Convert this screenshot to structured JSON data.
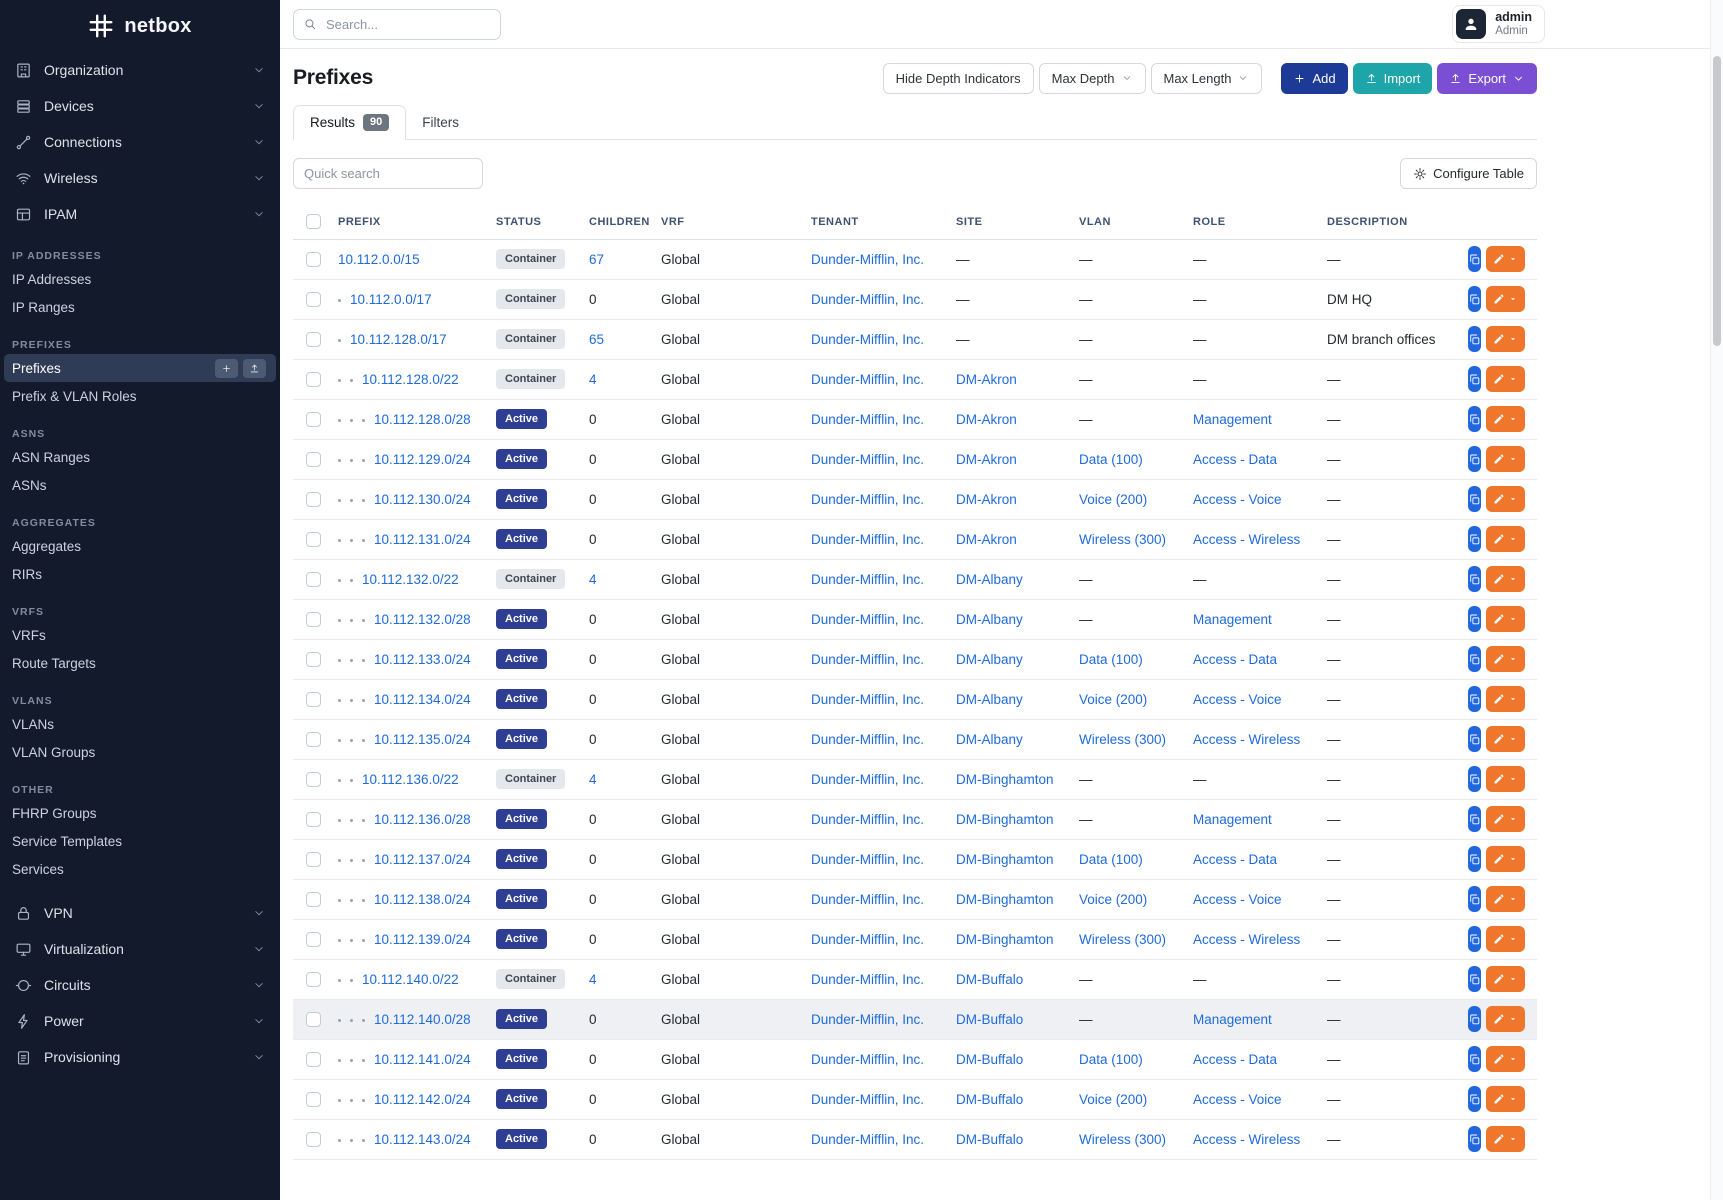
{
  "brand": "netbox",
  "colors": {
    "sidebar_bg": "#131a2b",
    "sidebar_active_bg": "#303c55",
    "link": "#1f6adb",
    "header_text": "#3f5172",
    "status_active_bg": "#2d3e93",
    "status_container_bg": "#e4e7ec",
    "btn_add": "#1d3a96",
    "btn_import": "#1da5a9",
    "btn_export": "#7a4fd4",
    "btn_copy": "#2066dd",
    "btn_edit": "#f0762c",
    "badge_count_bg": "#6d7580"
  },
  "topbar": {
    "search_placeholder": "Search...",
    "user_name": "admin",
    "user_role": "Admin"
  },
  "sidebar": {
    "menus_top": [
      {
        "label": "Organization",
        "icon": "organization-icon"
      },
      {
        "label": "Devices",
        "icon": "devices-icon"
      },
      {
        "label": "Connections",
        "icon": "connections-icon"
      },
      {
        "label": "Wireless",
        "icon": "wireless-icon"
      },
      {
        "label": "IPAM",
        "icon": "ipam-icon"
      }
    ],
    "groups": [
      {
        "heading": "IP ADDRESSES",
        "items": [
          {
            "label": "IP Addresses"
          },
          {
            "label": "IP Ranges"
          }
        ]
      },
      {
        "heading": "PREFIXES",
        "items": [
          {
            "label": "Prefixes",
            "active": true,
            "quick_buttons": true
          },
          {
            "label": "Prefix & VLAN Roles"
          }
        ]
      },
      {
        "heading": "ASNS",
        "items": [
          {
            "label": "ASN Ranges"
          },
          {
            "label": "ASNs"
          }
        ]
      },
      {
        "heading": "AGGREGATES",
        "items": [
          {
            "label": "Aggregates"
          },
          {
            "label": "RIRs"
          }
        ]
      },
      {
        "heading": "VRFS",
        "items": [
          {
            "label": "VRFs"
          },
          {
            "label": "Route Targets"
          }
        ]
      },
      {
        "heading": "VLANS",
        "items": [
          {
            "label": "VLANs"
          },
          {
            "label": "VLAN Groups"
          }
        ]
      },
      {
        "heading": "OTHER",
        "items": [
          {
            "label": "FHRP Groups"
          },
          {
            "label": "Service Templates"
          },
          {
            "label": "Services"
          }
        ]
      }
    ],
    "menus_bottom": [
      {
        "label": "VPN",
        "icon": "vpn-icon"
      },
      {
        "label": "Virtualization",
        "icon": "virtualization-icon"
      },
      {
        "label": "Circuits",
        "icon": "circuits-icon"
      },
      {
        "label": "Power",
        "icon": "power-icon"
      },
      {
        "label": "Provisioning",
        "icon": "provisioning-icon"
      }
    ]
  },
  "page": {
    "title": "Prefixes",
    "buttons": {
      "hide_depth": "Hide Depth Indicators",
      "max_depth": "Max Depth",
      "max_length": "Max Length",
      "add": "Add",
      "import": "Import",
      "export": "Export"
    },
    "tabs": {
      "results": "Results",
      "results_count": "90",
      "filters": "Filters"
    },
    "quick_search_placeholder": "Quick search",
    "configure_table": "Configure Table"
  },
  "table": {
    "columns": [
      "PREFIX",
      "STATUS",
      "CHILDREN",
      "VRF",
      "TENANT",
      "SITE",
      "VLAN",
      "ROLE",
      "DESCRIPTION"
    ],
    "rows": [
      {
        "prefix": "10.112.0.0/15",
        "depth": 0,
        "status": "Container",
        "children": "67",
        "vrf": "Global",
        "tenant": "Dunder-Mifflin, Inc.",
        "site": "—",
        "vlan": "—",
        "role": "—",
        "description": "—"
      },
      {
        "prefix": "10.112.0.0/17",
        "depth": 1,
        "status": "Container",
        "children": "0",
        "vrf": "Global",
        "tenant": "Dunder-Mifflin, Inc.",
        "site": "—",
        "vlan": "—",
        "role": "—",
        "description": "DM HQ"
      },
      {
        "prefix": "10.112.128.0/17",
        "depth": 1,
        "status": "Container",
        "children": "65",
        "vrf": "Global",
        "tenant": "Dunder-Mifflin, Inc.",
        "site": "—",
        "vlan": "—",
        "role": "—",
        "description": "DM branch offices"
      },
      {
        "prefix": "10.112.128.0/22",
        "depth": 2,
        "status": "Container",
        "children": "4",
        "vrf": "Global",
        "tenant": "Dunder-Mifflin, Inc.",
        "site": "DM-Akron",
        "vlan": "—",
        "role": "—",
        "description": "—"
      },
      {
        "prefix": "10.112.128.0/28",
        "depth": 3,
        "status": "Active",
        "children": "0",
        "vrf": "Global",
        "tenant": "Dunder-Mifflin, Inc.",
        "site": "DM-Akron",
        "vlan": "—",
        "role": "Management",
        "description": "—"
      },
      {
        "prefix": "10.112.129.0/24",
        "depth": 3,
        "status": "Active",
        "children": "0",
        "vrf": "Global",
        "tenant": "Dunder-Mifflin, Inc.",
        "site": "DM-Akron",
        "vlan": "Data (100)",
        "role": "Access - Data",
        "description": "—"
      },
      {
        "prefix": "10.112.130.0/24",
        "depth": 3,
        "status": "Active",
        "children": "0",
        "vrf": "Global",
        "tenant": "Dunder-Mifflin, Inc.",
        "site": "DM-Akron",
        "vlan": "Voice (200)",
        "role": "Access - Voice",
        "description": "—"
      },
      {
        "prefix": "10.112.131.0/24",
        "depth": 3,
        "status": "Active",
        "children": "0",
        "vrf": "Global",
        "tenant": "Dunder-Mifflin, Inc.",
        "site": "DM-Akron",
        "vlan": "Wireless (300)",
        "role": "Access - Wireless",
        "description": "—"
      },
      {
        "prefix": "10.112.132.0/22",
        "depth": 2,
        "status": "Container",
        "children": "4",
        "vrf": "Global",
        "tenant": "Dunder-Mifflin, Inc.",
        "site": "DM-Albany",
        "vlan": "—",
        "role": "—",
        "description": "—"
      },
      {
        "prefix": "10.112.132.0/28",
        "depth": 3,
        "status": "Active",
        "children": "0",
        "vrf": "Global",
        "tenant": "Dunder-Mifflin, Inc.",
        "site": "DM-Albany",
        "vlan": "—",
        "role": "Management",
        "description": "—"
      },
      {
        "prefix": "10.112.133.0/24",
        "depth": 3,
        "status": "Active",
        "children": "0",
        "vrf": "Global",
        "tenant": "Dunder-Mifflin, Inc.",
        "site": "DM-Albany",
        "vlan": "Data (100)",
        "role": "Access - Data",
        "description": "—"
      },
      {
        "prefix": "10.112.134.0/24",
        "depth": 3,
        "status": "Active",
        "children": "0",
        "vrf": "Global",
        "tenant": "Dunder-Mifflin, Inc.",
        "site": "DM-Albany",
        "vlan": "Voice (200)",
        "role": "Access - Voice",
        "description": "—"
      },
      {
        "prefix": "10.112.135.0/24",
        "depth": 3,
        "status": "Active",
        "children": "0",
        "vrf": "Global",
        "tenant": "Dunder-Mifflin, Inc.",
        "site": "DM-Albany",
        "vlan": "Wireless (300)",
        "role": "Access - Wireless",
        "description": "—"
      },
      {
        "prefix": "10.112.136.0/22",
        "depth": 2,
        "status": "Container",
        "children": "4",
        "vrf": "Global",
        "tenant": "Dunder-Mifflin, Inc.",
        "site": "DM-Binghamton",
        "vlan": "—",
        "role": "—",
        "description": "—"
      },
      {
        "prefix": "10.112.136.0/28",
        "depth": 3,
        "status": "Active",
        "children": "0",
        "vrf": "Global",
        "tenant": "Dunder-Mifflin, Inc.",
        "site": "DM-Binghamton",
        "vlan": "—",
        "role": "Management",
        "description": "—"
      },
      {
        "prefix": "10.112.137.0/24",
        "depth": 3,
        "status": "Active",
        "children": "0",
        "vrf": "Global",
        "tenant": "Dunder-Mifflin, Inc.",
        "site": "DM-Binghamton",
        "vlan": "Data (100)",
        "role": "Access - Data",
        "description": "—"
      },
      {
        "prefix": "10.112.138.0/24",
        "depth": 3,
        "status": "Active",
        "children": "0",
        "vrf": "Global",
        "tenant": "Dunder-Mifflin, Inc.",
        "site": "DM-Binghamton",
        "vlan": "Voice (200)",
        "role": "Access - Voice",
        "description": "—"
      },
      {
        "prefix": "10.112.139.0/24",
        "depth": 3,
        "status": "Active",
        "children": "0",
        "vrf": "Global",
        "tenant": "Dunder-Mifflin, Inc.",
        "site": "DM-Binghamton",
        "vlan": "Wireless (300)",
        "role": "Access - Wireless",
        "description": "—"
      },
      {
        "prefix": "10.112.140.0/22",
        "depth": 2,
        "status": "Container",
        "children": "4",
        "vrf": "Global",
        "tenant": "Dunder-Mifflin, Inc.",
        "site": "DM-Buffalo",
        "vlan": "—",
        "role": "—",
        "description": "—"
      },
      {
        "prefix": "10.112.140.0/28",
        "depth": 3,
        "status": "Active",
        "children": "0",
        "vrf": "Global",
        "tenant": "Dunder-Mifflin, Inc.",
        "site": "DM-Buffalo",
        "vlan": "—",
        "role": "Management",
        "description": "—",
        "highlighted": true
      },
      {
        "prefix": "10.112.141.0/24",
        "depth": 3,
        "status": "Active",
        "children": "0",
        "vrf": "Global",
        "tenant": "Dunder-Mifflin, Inc.",
        "site": "DM-Buffalo",
        "vlan": "Data (100)",
        "role": "Access - Data",
        "description": "—"
      },
      {
        "prefix": "10.112.142.0/24",
        "depth": 3,
        "status": "Active",
        "children": "0",
        "vrf": "Global",
        "tenant": "Dunder-Mifflin, Inc.",
        "site": "DM-Buffalo",
        "vlan": "Voice (200)",
        "role": "Access - Voice",
        "description": "—"
      },
      {
        "prefix": "10.112.143.0/24",
        "depth": 3,
        "status": "Active",
        "children": "0",
        "vrf": "Global",
        "tenant": "Dunder-Mifflin, Inc.",
        "site": "DM-Buffalo",
        "vlan": "Wireless (300)",
        "role": "Access - Wireless",
        "description": "—"
      }
    ]
  }
}
